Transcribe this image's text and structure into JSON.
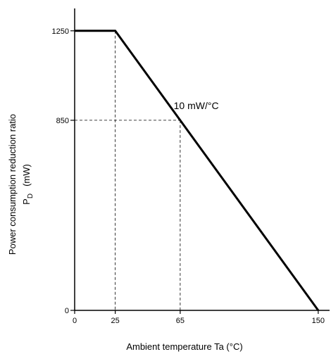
{
  "chart_data": {
    "type": "line",
    "title": "",
    "xlabel": "Ambient temperature   Ta   (°C)",
    "ylabel_line1": "Power consumption reduction ratio",
    "ylabel_line2_main": "P",
    "ylabel_line2_sub": "D",
    "ylabel_line2_unit": "(mW)",
    "xlim": [
      0,
      157
    ],
    "ylim": [
      0,
      1350
    ],
    "x_ticks": [
      0,
      25,
      65,
      150
    ],
    "x_tick_labels": [
      "0",
      "25",
      "65",
      "150"
    ],
    "y_ticks": [
      0,
      850,
      1250
    ],
    "y_tick_labels": [
      "0",
      "850",
      "1250"
    ],
    "grid": false,
    "series": [
      {
        "x": [
          0,
          25,
          150
        ],
        "y": [
          1250,
          1250,
          0
        ]
      }
    ],
    "reference_lines": [
      {
        "x": 25,
        "y": 1250
      },
      {
        "x": 65,
        "y": 850
      }
    ],
    "annotations": [
      {
        "text": "10 mW/°C",
        "x": 61,
        "y": 900
      }
    ]
  }
}
